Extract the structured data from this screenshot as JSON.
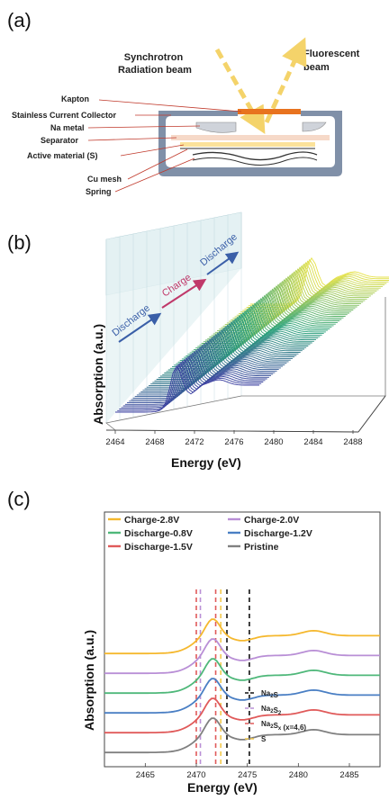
{
  "panel_a": {
    "letter": "(a)",
    "beam_in": [
      "Synchrotron",
      "Radiation beam"
    ],
    "beam_out": [
      "Fluorescent",
      "beam"
    ],
    "labels": {
      "kapton": "Kapton",
      "collector": "Stainless Current Collector",
      "na_metal": "Na metal",
      "separator": "Separator",
      "active": "Active material (S)",
      "cu_mesh": "Cu mesh",
      "spring": "Spring"
    },
    "colors": {
      "case": "#8090a8",
      "kapton": "#e8731f",
      "beam": "#f4d36a",
      "separator": "#f6d9c8",
      "active": "#fbe29a"
    }
  },
  "panel_b": {
    "letter": "(b)",
    "ylabel": "Absorption (a.u.)",
    "xlabel": "Energy (eV)",
    "xticks": [
      "2464",
      "2468",
      "2472",
      "2476",
      "2480",
      "2484",
      "2488"
    ],
    "arrows": [
      {
        "text": "Discharge",
        "color": "#3a5fa8"
      },
      {
        "text": "Charge",
        "color": "#c0396a"
      },
      {
        "text": "Discharge",
        "color": "#3a5fa8"
      }
    ],
    "curve_count": 70,
    "colors": {
      "start": "#3b3fa0",
      "mid": "#2aa27a",
      "end": "#e6e24a",
      "plane": "#dcecf0"
    }
  },
  "panel_c": {
    "letter": "(c)",
    "ylabel": "Absorption (a.u.)",
    "xlabel": "Energy (eV)",
    "chart_data": {
      "type": "line",
      "xlim": [
        2461,
        2488
      ],
      "xticks": [
        2465,
        2470,
        2475,
        2480,
        2485
      ],
      "series": [
        {
          "name": "Charge-2.8V",
          "color": "#f5b82e",
          "offset": 6.0
        },
        {
          "name": "Charge-2.0V",
          "color": "#b98fd6",
          "offset": 5.0
        },
        {
          "name": "Discharge-0.8V",
          "color": "#4fb87a",
          "offset": 4.0
        },
        {
          "name": "Discharge-1.2V",
          "color": "#4a7fc4",
          "offset": 3.0
        },
        {
          "name": "Discharge-1.5V",
          "color": "#e05a5a",
          "offset": 2.0
        },
        {
          "name": "Pristine",
          "color": "#808080",
          "offset": 1.0
        }
      ],
      "references": [
        {
          "name": "Na",
          "sub": "2",
          "tail": "S",
          "color": "#111111",
          "x": [
            2473.0,
            2475.2
          ]
        },
        {
          "name": "Na",
          "sub": "2",
          "tail": "S",
          "sub2": "2",
          "color": "#b98fd6",
          "x": [
            2470.4
          ]
        },
        {
          "name": "Na",
          "sub": "2",
          "tail": "S",
          "sub2": "x",
          "note": " (x=4,6)",
          "color": "#e05a5a",
          "x": [
            2470.0,
            2471.9
          ]
        },
        {
          "name": "S",
          "color": "#f2c94c",
          "x": [
            2472.4
          ]
        }
      ]
    }
  }
}
